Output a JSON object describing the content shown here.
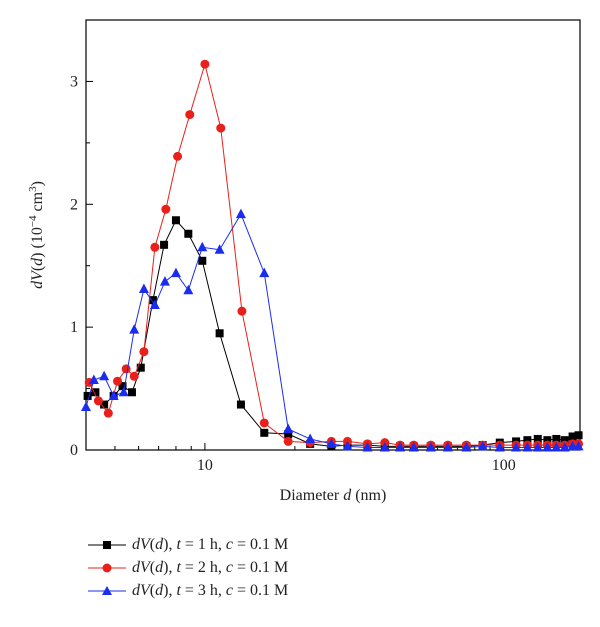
{
  "chart_data": {
    "type": "line",
    "xlabel": "Diameter d (nm)",
    "ylabel": "dV(d) (10−4 cm3)",
    "x_scale": "log",
    "xlim": [
      4,
      180
    ],
    "ylim": [
      0,
      3.5
    ],
    "x_ticks": [
      10,
      100
    ],
    "x_tick_labels": [
      "10",
      "100"
    ],
    "y_ticks": [
      0,
      1,
      2,
      3
    ],
    "y_tick_labels": [
      "0",
      "1",
      "2",
      "3"
    ],
    "grid": false,
    "legend_position": "below-left",
    "series": [
      {
        "name": "dV(d), t = 1 h, c = 0.1 M",
        "color": "#000000",
        "marker": "square",
        "x": [
          4.05,
          4.3,
          4.6,
          4.95,
          5.3,
          5.7,
          6.1,
          6.7,
          7.3,
          8.0,
          8.8,
          9.8,
          11.2,
          13.2,
          15.8,
          19.0,
          22.5,
          26.5,
          30,
          35,
          40,
          45,
          50,
          57,
          65,
          75,
          85,
          97,
          110,
          120,
          130,
          140,
          150,
          160,
          170,
          178
        ],
        "y": [
          0.44,
          0.47,
          0.37,
          0.44,
          0.52,
          0.47,
          0.67,
          1.22,
          1.67,
          1.87,
          1.76,
          1.54,
          0.95,
          0.37,
          0.14,
          0.13,
          0.05,
          0.03,
          0.04,
          0.04,
          0.03,
          0.03,
          0.03,
          0.03,
          0.03,
          0.03,
          0.04,
          0.06,
          0.07,
          0.08,
          0.09,
          0.08,
          0.09,
          0.08,
          0.11,
          0.12
        ]
      },
      {
        "name": "dV(d), t = 2 h, c = 0.1 M",
        "color": "#e8201c",
        "marker": "circle",
        "x": [
          4.1,
          4.4,
          4.75,
          5.1,
          5.45,
          5.8,
          6.25,
          6.8,
          7.4,
          8.1,
          8.9,
          10.0,
          11.3,
          13.3,
          15.8,
          19.0,
          22.5,
          26.5,
          30,
          35,
          40,
          45,
          50,
          57,
          65,
          75,
          85,
          97,
          110,
          120,
          130,
          140,
          150,
          160,
          170,
          178
        ],
        "y": [
          0.55,
          0.4,
          0.3,
          0.56,
          0.66,
          0.6,
          0.8,
          1.65,
          1.96,
          2.39,
          2.73,
          3.14,
          2.62,
          1.13,
          0.22,
          0.07,
          0.06,
          0.07,
          0.07,
          0.05,
          0.06,
          0.04,
          0.04,
          0.04,
          0.04,
          0.04,
          0.04,
          0.04,
          0.04,
          0.04,
          0.04,
          0.04,
          0.04,
          0.04,
          0.05,
          0.05
        ]
      },
      {
        "name": "dV(d), t = 3 h, c = 0.1 M",
        "color": "#1a2cf0",
        "marker": "triangle",
        "x": [
          4.0,
          4.25,
          4.6,
          4.95,
          5.35,
          5.8,
          6.25,
          6.8,
          7.35,
          8.0,
          8.8,
          9.8,
          11.2,
          13.2,
          15.8,
          19.0,
          22.5,
          26.5,
          30,
          35,
          40,
          45,
          50,
          57,
          65,
          75,
          85,
          97,
          110,
          120,
          130,
          140,
          150,
          160,
          170,
          178
        ],
        "y": [
          0.35,
          0.57,
          0.6,
          0.44,
          0.47,
          0.98,
          1.31,
          1.18,
          1.37,
          1.44,
          1.3,
          1.65,
          1.63,
          1.92,
          1.44,
          0.17,
          0.09,
          0.05,
          0.03,
          0.02,
          0.02,
          0.02,
          0.02,
          0.02,
          0.02,
          0.02,
          0.03,
          0.02,
          0.02,
          0.02,
          0.02,
          0.02,
          0.02,
          0.02,
          0.03,
          0.03
        ]
      }
    ]
  }
}
